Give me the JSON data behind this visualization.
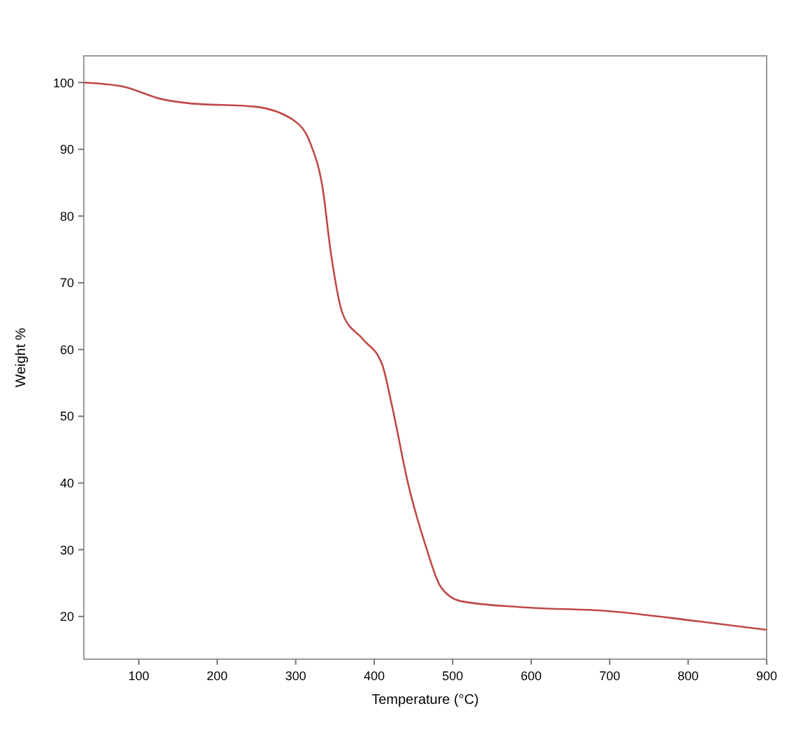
{
  "chart_data": {
    "type": "line",
    "xlabel": "Temperature (°C)",
    "ylabel": "Weight %",
    "xlim": [
      30,
      900
    ],
    "ylim": [
      13.6,
      104
    ],
    "xticks": [
      100,
      200,
      300,
      400,
      500,
      600,
      700,
      800,
      900
    ],
    "yticks": [
      20,
      30,
      40,
      50,
      60,
      70,
      80,
      90,
      100
    ],
    "series": [
      {
        "color": "#c04848",
        "x": [
          30,
          80,
          130,
          164,
          247,
          298,
          319,
          334,
          345,
          360,
          386,
          410,
          423,
          443,
          465,
          485,
          510,
          587,
          699,
          811,
          900
        ],
        "values": [
          100,
          99.4,
          97.5,
          96.9,
          96.4,
          94.3,
          90.8,
          84.4,
          74.3,
          65.3,
          61.5,
          57.8,
          51.4,
          40,
          30.8,
          24.4,
          22.3,
          21.4,
          20.8,
          19.3,
          18
        ]
      }
    ]
  }
}
